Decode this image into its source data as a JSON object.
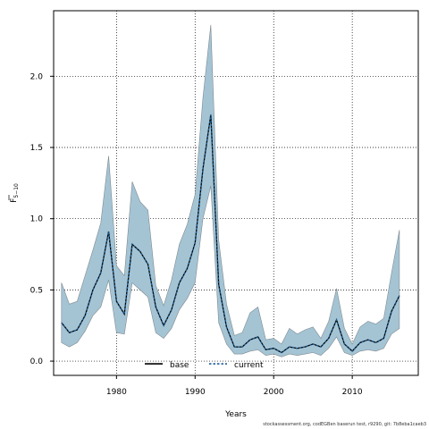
{
  "chart_data": {
    "type": "area",
    "xlabel": "Years",
    "ylabel_base": "F",
    "ylabel_sub": "5−10",
    "xlim": [
      1972,
      2018.4
    ],
    "ylim": [
      -0.1,
      2.46
    ],
    "xticks": [
      1980,
      1990,
      2000,
      2010
    ],
    "yticks": [
      0.0,
      0.5,
      1.0,
      1.5,
      2.0
    ],
    "ytick_labels": [
      "0.0",
      "0.5",
      "1.0",
      "1.5",
      "2.0"
    ],
    "grid": true,
    "legend_position": "bottom-center",
    "colors": {
      "band_fill": "#a4c4d4",
      "band_edge": "#7f8a90",
      "line": "#000000"
    },
    "x": [
      1973,
      1974,
      1975,
      1976,
      1977,
      1978,
      1979,
      1980,
      1981,
      1982,
      1983,
      1984,
      1985,
      1986,
      1987,
      1988,
      1989,
      1990,
      1991,
      1992,
      1993,
      1994,
      1995,
      1996,
      1997,
      1998,
      1999,
      2000,
      2001,
      2002,
      2003,
      2004,
      2005,
      2006,
      2007,
      2008,
      2009,
      2010,
      2011,
      2012,
      2013,
      2014,
      2015,
      2016
    ],
    "series": [
      {
        "name": "base",
        "style": "solid",
        "values": [
          0.27,
          0.2,
          0.22,
          0.32,
          0.5,
          0.62,
          0.91,
          0.42,
          0.33,
          0.82,
          0.77,
          0.68,
          0.38,
          0.25,
          0.36,
          0.55,
          0.65,
          0.83,
          1.35,
          1.73,
          0.54,
          0.24,
          0.1,
          0.1,
          0.15,
          0.17,
          0.08,
          0.09,
          0.06,
          0.1,
          0.09,
          0.1,
          0.12,
          0.1,
          0.16,
          0.29,
          0.12,
          0.07,
          0.13,
          0.15,
          0.13,
          0.16,
          0.35,
          0.46
        ]
      },
      {
        "name": "current",
        "style": "dotted",
        "values": [
          0.27,
          0.2,
          0.22,
          0.32,
          0.5,
          0.62,
          0.91,
          0.42,
          0.33,
          0.82,
          0.77,
          0.68,
          0.38,
          0.25,
          0.36,
          0.55,
          0.65,
          0.83,
          1.35,
          1.73,
          0.54,
          0.24,
          0.1,
          0.1,
          0.15,
          0.17,
          0.08,
          0.09,
          0.06,
          0.1,
          0.09,
          0.1,
          0.12,
          0.1,
          0.16,
          0.29,
          0.12,
          0.07,
          0.13,
          0.15,
          0.13,
          0.16,
          0.35,
          0.46
        ]
      }
    ],
    "band_upper": [
      0.55,
      0.4,
      0.42,
      0.6,
      0.78,
      0.97,
      1.44,
      0.67,
      0.6,
      1.26,
      1.12,
      1.06,
      0.53,
      0.39,
      0.57,
      0.82,
      0.96,
      1.17,
      1.85,
      2.36,
      0.85,
      0.4,
      0.18,
      0.2,
      0.34,
      0.38,
      0.15,
      0.16,
      0.12,
      0.23,
      0.19,
      0.22,
      0.24,
      0.16,
      0.28,
      0.51,
      0.23,
      0.12,
      0.24,
      0.28,
      0.26,
      0.3,
      0.62,
      0.92
    ],
    "band_lower": [
      0.13,
      0.1,
      0.13,
      0.21,
      0.32,
      0.38,
      0.57,
      0.2,
      0.19,
      0.55,
      0.5,
      0.45,
      0.2,
      0.16,
      0.23,
      0.36,
      0.44,
      0.55,
      1.0,
      1.23,
      0.27,
      0.12,
      0.05,
      0.05,
      0.07,
      0.08,
      0.04,
      0.05,
      0.03,
      0.05,
      0.04,
      0.05,
      0.06,
      0.04,
      0.09,
      0.17,
      0.06,
      0.04,
      0.07,
      0.08,
      0.07,
      0.09,
      0.19,
      0.23
    ]
  },
  "footer_text": "stockassessment.org, codEGBen baserun test, r9290, git: 7b8eba1caeb3"
}
